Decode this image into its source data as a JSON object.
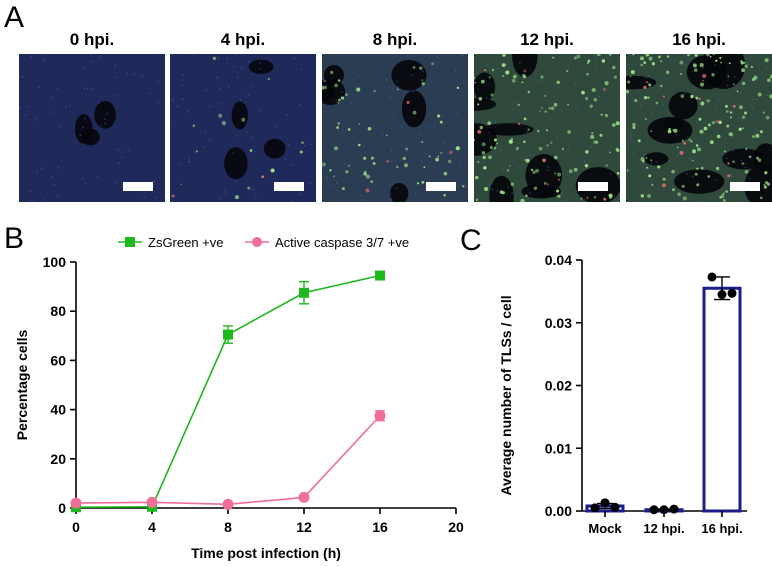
{
  "figure": {
    "panel_a_label": "A",
    "panel_b_label": "B",
    "panel_c_label": "C",
    "images": [
      {
        "label": "0 hpi.",
        "level": 0.0
      },
      {
        "label": "4 hpi.",
        "level": 0.1
      },
      {
        "label": "8 hpi.",
        "level": 0.4
      },
      {
        "label": "12 hpi.",
        "level": 0.8
      },
      {
        "label": "16 hpi.",
        "level": 1.0
      }
    ]
  },
  "chart_data": [
    {
      "type": "line",
      "xlabel": "Time post infection (h)",
      "ylabel": "Percentage cells",
      "xlim": [
        0,
        20
      ],
      "ylim": [
        0,
        100
      ],
      "xticks": [
        "0",
        "4",
        "8",
        "12",
        "16",
        "20"
      ],
      "yticks": [
        "0",
        "20",
        "40",
        "60",
        "80",
        "100"
      ],
      "legend_position": "top",
      "series": [
        {
          "name": "ZsGreen +ve",
          "color": "#1db81d",
          "marker": "square",
          "x": [
            0,
            4,
            8,
            12,
            16
          ],
          "y": [
            0.3,
            0.5,
            70.5,
            87.5,
            94.5
          ],
          "err": [
            0.3,
            0.3,
            3.5,
            4.5,
            1.0
          ]
        },
        {
          "name": "Active caspase 3/7 +ve",
          "color": "#ef6f96",
          "marker": "circle",
          "x": [
            0,
            4,
            8,
            12,
            16
          ],
          "y": [
            2.0,
            2.3,
            1.5,
            4.3,
            37.5
          ],
          "err": [
            0.5,
            0.5,
            0.3,
            0.5,
            2.0
          ]
        }
      ]
    },
    {
      "type": "bar",
      "ylabel": "Average number of TLSs / cell",
      "ylim": [
        0,
        0.04
      ],
      "yticks": [
        "0.00",
        "0.01",
        "0.02",
        "0.03",
        "0.04"
      ],
      "categories": [
        "Mock",
        "12 hpi.",
        "16 hpi."
      ],
      "values": [
        0.0008,
        0.0002,
        0.0355
      ],
      "err": [
        0.0004,
        0.0001,
        0.0018
      ],
      "points": [
        [
          0.0005,
          0.0013,
          0.0006
        ],
        [
          0.0002,
          0.0002,
          0.0003
        ],
        [
          0.0373,
          0.0345,
          0.0347
        ]
      ],
      "bar_color": "#1c1c8c"
    }
  ]
}
